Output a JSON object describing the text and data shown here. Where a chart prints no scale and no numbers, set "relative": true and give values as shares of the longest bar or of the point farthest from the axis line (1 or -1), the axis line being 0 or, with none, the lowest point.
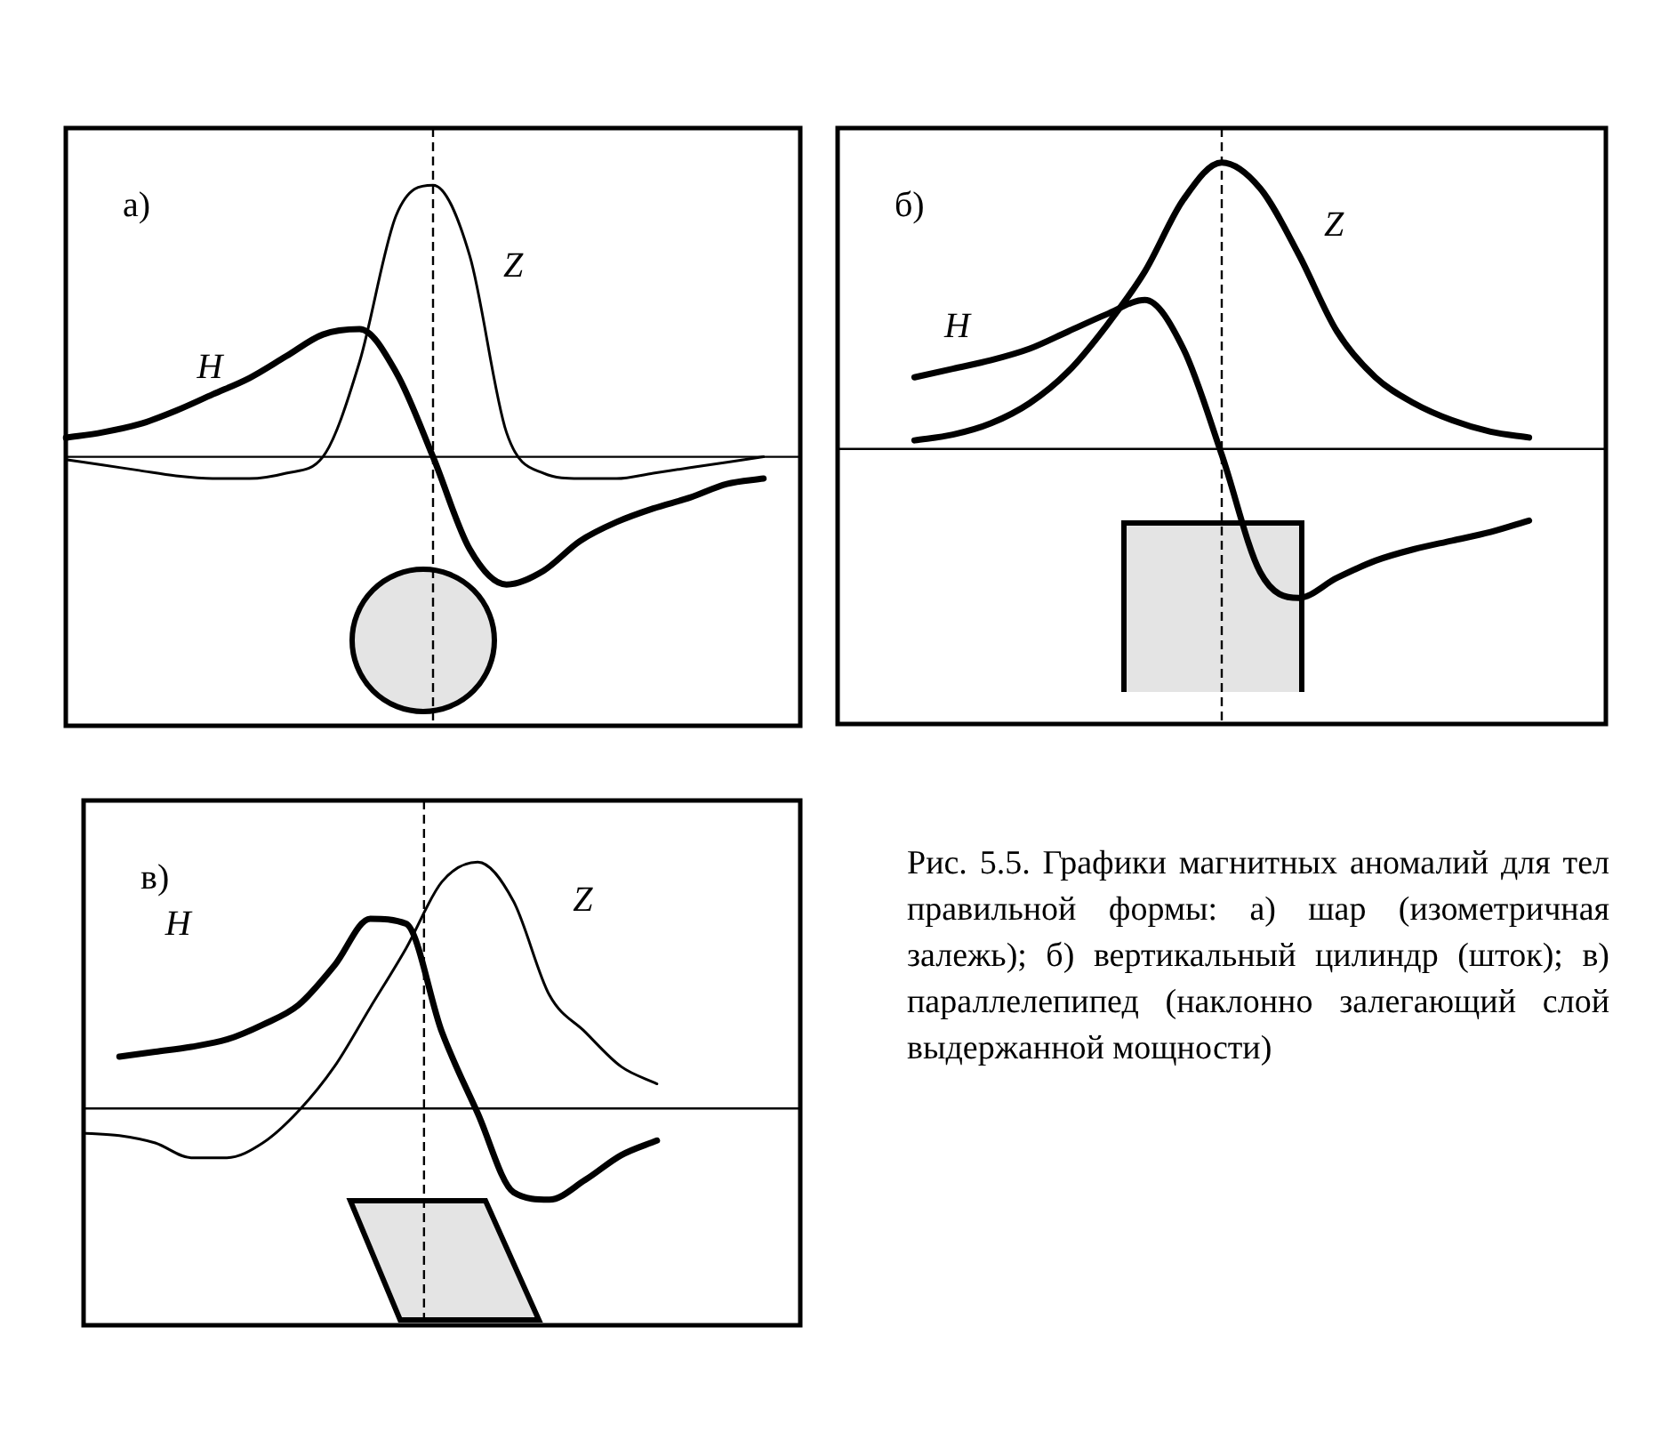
{
  "chart_data": [
    {
      "type": "line",
      "title": "а)",
      "relative": true,
      "categories": [
        null,
        null,
        null,
        null,
        null,
        null,
        null,
        null,
        null,
        null,
        null,
        null,
        null,
        null,
        null,
        null,
        null,
        null,
        null,
        null,
        null
      ],
      "series": [
        {
          "name": "H",
          "color": "#000000",
          "values": [
            0.07,
            0.09,
            0.12,
            0.17,
            0.23,
            0.29,
            0.37,
            0.45,
            0.47,
            0.31,
            0.0,
            -0.34,
            -0.47,
            -0.42,
            -0.31,
            -0.24,
            -0.19,
            -0.15,
            -0.1,
            -0.08,
            null
          ]
        },
        {
          "name": "Z",
          "color": "#000000",
          "values": [
            -0.01,
            -0.03,
            -0.05,
            -0.07,
            -0.08,
            -0.08,
            -0.06,
            0.0,
            0.35,
            0.89,
            1,
            0.74,
            0.09,
            -0.06,
            -0.08,
            -0.08,
            -0.06,
            -0.04,
            -0.02,
            0.0,
            null
          ]
        }
      ]
    },
    {
      "type": "line",
      "title": "б)",
      "relative": true,
      "categories": [
        null,
        null,
        null,
        null,
        null,
        null,
        null,
        null,
        null,
        null,
        null,
        null,
        null,
        null,
        null,
        null,
        null,
        null,
        null,
        null,
        null
      ],
      "series": [
        {
          "name": "H",
          "color": "#000000",
          "values": [
            null,
            null,
            0.25,
            0.28,
            0.31,
            0.35,
            0.41,
            0.47,
            0.52,
            0.35,
            -0.02,
            -0.43,
            -0.52,
            -0.45,
            -0.39,
            -0.35,
            -0.32,
            -0.29,
            -0.25,
            null,
            null
          ]
        },
        {
          "name": "Z",
          "color": "#000000",
          "values": [
            null,
            null,
            0.03,
            0.05,
            0.09,
            0.16,
            0.27,
            0.43,
            0.62,
            0.87,
            1,
            0.91,
            0.68,
            0.41,
            0.25,
            0.16,
            0.1,
            0.06,
            0.04,
            null,
            null
          ]
        }
      ]
    },
    {
      "type": "line",
      "title": "в)",
      "relative": true,
      "categories": [
        null,
        null,
        null,
        null,
        null,
        null,
        null,
        null,
        null,
        null,
        null,
        null,
        null,
        null,
        null,
        null,
        null,
        null,
        null,
        null,
        null
      ],
      "series": [
        {
          "name": "H",
          "color": "#000000",
          "values": [
            null,
            0.21,
            0.23,
            0.25,
            0.28,
            0.34,
            0.42,
            0.58,
            0.77,
            0.75,
            0.31,
            -0.02,
            -0.34,
            -0.37,
            -0.29,
            -0.19,
            -0.13,
            null,
            null,
            null,
            null
          ]
        },
        {
          "name": "Z",
          "color": "#000000",
          "values": [
            -0.1,
            -0.11,
            -0.14,
            -0.2,
            -0.2,
            -0.14,
            -0.01,
            0.17,
            0.41,
            0.65,
            0.92,
            1,
            0.84,
            0.46,
            0.31,
            0.17,
            0.1,
            null,
            null,
            null,
            null
          ]
        }
      ],
      "annotations": [
        "Рис. 5.5. Графики магнитных аномалий для тел правильной формы: а) шар (изометричная залежь); б) вертикальный цилиндр (шток); в) параллелепипед (наклонно залегающий слой выдержанной мощности)"
      ]
    }
  ]
}
